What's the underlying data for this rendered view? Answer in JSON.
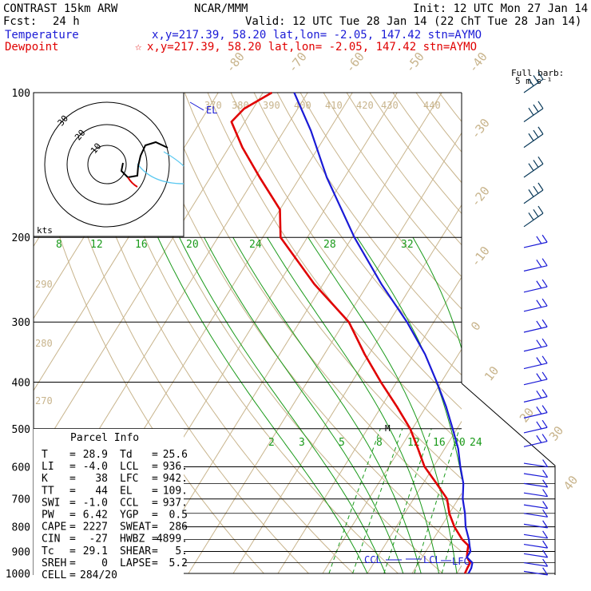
{
  "header": {
    "model": "CONTRAST 15km ARW",
    "source": "NCAR/MMM",
    "init": "Init: 12 UTC Mon 27 Jan 14",
    "fcst_label": "Fcst:",
    "fcst_value": "24 h",
    "valid": "Valid: 12 UTC Tue 28 Jan 14 (22 ChT Tue 28 Jan 14)"
  },
  "legend": {
    "temperature_label": "Temperature",
    "temperature_info": "x,y=217.39, 58.20   lat,lon= -2.05, 147.42  stn=AYMO",
    "dewpoint_label": "Dewpoint",
    "dewpoint_star": "☆",
    "dewpoint_info": "x,y=217.39, 58.20   lat,lon= -2.05, 147.42  stn=AYMO"
  },
  "barb_legend": {
    "line1": "Full barb:",
    "line2": "5 m s⁻¹"
  },
  "hodograph": {
    "unit": "kts",
    "ring_labels": [
      "10",
      "20",
      "30"
    ]
  },
  "markers": {
    "el": "EL",
    "ccl": "CCL",
    "lcl": "LCL",
    "lfc": "LFC",
    "m": "M"
  },
  "parcel": {
    "title": "Parcel Info",
    "rows": [
      [
        "T",
        "=",
        "28.9",
        "Td",
        "=",
        "25.6"
      ],
      [
        "LI",
        "=",
        "-4.0",
        "LCL",
        "=",
        "936."
      ],
      [
        "K",
        "=",
        "38",
        "LFC",
        "=",
        "942."
      ],
      [
        "TT",
        "=",
        "44",
        "EL",
        "=",
        "109."
      ],
      [
        "SWI",
        "=",
        "-1.0",
        "CCL",
        "=",
        "937."
      ],
      [
        "PW",
        "=",
        "6.42",
        "YGP",
        "=",
        "0.5"
      ],
      [
        "CAPE",
        "=",
        "2227",
        "SWEAT",
        "=",
        "286"
      ],
      [
        "CIN",
        "=",
        "-27",
        "HWBZ",
        "=",
        "4899."
      ],
      [
        "Tc",
        "=",
        "29.1",
        "SHEAR",
        "=",
        "5."
      ],
      [
        "SREH",
        "=",
        "0",
        "LAPSE",
        "=",
        "5.2"
      ],
      [
        "CELL",
        "=",
        "284/20",
        "",
        "",
        ""
      ]
    ]
  },
  "chart_data": {
    "type": "line",
    "title": "",
    "y_axis": {
      "label": "pressure (hPa)",
      "scale": "log",
      "ticks": [
        100,
        200,
        300,
        400,
        500,
        600,
        700,
        800,
        900,
        1000
      ]
    },
    "isotherm_labels": [
      "-80",
      "-70",
      "-60",
      "-50",
      "-40",
      "-30",
      "-20",
      "-10",
      "0",
      "10",
      "20",
      "30",
      "40"
    ],
    "theta_labels": [
      "370",
      "380",
      "390",
      "400",
      "410",
      "420",
      "430",
      "440",
      "290",
      "280",
      "270"
    ],
    "mixing_ratio_upper_labels": [
      "8",
      "12",
      "16",
      "20",
      "24",
      "28",
      "32"
    ],
    "mixing_ratio_lower_labels": [
      "2",
      "3",
      "5",
      "8",
      "12",
      "16",
      "20",
      "24"
    ],
    "series": [
      {
        "name": "Temperature",
        "color": "#1a1ad6",
        "points": [
          [
            1000,
            22.6
          ],
          [
            975,
            22.5
          ],
          [
            950,
            22.0
          ],
          [
            925,
            20.0
          ],
          [
            900,
            20.0
          ],
          [
            875,
            19.0
          ],
          [
            850,
            18.0
          ],
          [
            800,
            15.5
          ],
          [
            750,
            13.5
          ],
          [
            700,
            11.0
          ],
          [
            650,
            9.0
          ],
          [
            600,
            6.0
          ],
          [
            550,
            3.0
          ],
          [
            500,
            -1.0
          ],
          [
            450,
            -5.5
          ],
          [
            400,
            -11.0
          ],
          [
            350,
            -17.5
          ],
          [
            300,
            -26.0
          ],
          [
            250,
            -37.0
          ],
          [
            200,
            -49.5
          ],
          [
            150,
            -64.0
          ],
          [
            120,
            -74.0
          ],
          [
            100,
            -83.0
          ]
        ]
      },
      {
        "name": "Dewpoint",
        "color": "#e00000",
        "points": [
          [
            1000,
            21.8
          ],
          [
            975,
            21.6
          ],
          [
            950,
            21.5
          ],
          [
            925,
            20.0
          ],
          [
            900,
            19.3
          ],
          [
            875,
            18.7
          ],
          [
            850,
            16.5
          ],
          [
            800,
            13.0
          ],
          [
            750,
            10.0
          ],
          [
            700,
            7.5
          ],
          [
            650,
            3.0
          ],
          [
            600,
            -2.0
          ],
          [
            550,
            -6.0
          ],
          [
            500,
            -10.5
          ],
          [
            450,
            -16.5
          ],
          [
            400,
            -23.5
          ],
          [
            350,
            -31.0
          ],
          [
            300,
            -39.0
          ],
          [
            250,
            -52.0
          ],
          [
            200,
            -66.0
          ],
          [
            175,
            -70.0
          ],
          [
            150,
            -79.0
          ],
          [
            130,
            -87.0
          ],
          [
            115,
            -93.0
          ],
          [
            108,
            -92.0
          ],
          [
            100,
            -88.0
          ]
        ]
      }
    ],
    "wind_barbs_levels_hPa": [
      100,
      115,
      130,
      150,
      170,
      190,
      210,
      235,
      260,
      285,
      315,
      345,
      375,
      405,
      440,
      475,
      510,
      545,
      590,
      620,
      650,
      680,
      720,
      750,
      790,
      830,
      870,
      910,
      950,
      990
    ],
    "hodograph_trace": "light winds, mostly within the 10 kt ring"
  }
}
